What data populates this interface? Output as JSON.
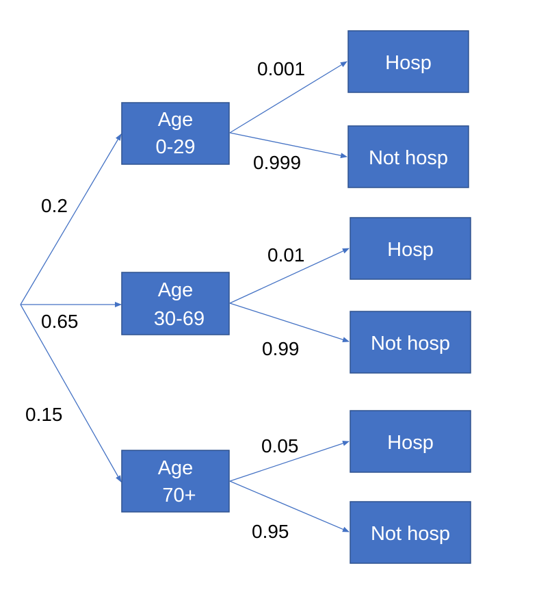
{
  "colors": {
    "node_fill": "#4472c4",
    "node_border": "#2f528f",
    "edge": "#4472c4",
    "label_text": "#000000",
    "node_text": "#ffffff"
  },
  "tree": {
    "groups": [
      {
        "label_line1": "Age",
        "label_line2": "0-29",
        "probability": "0.2",
        "outcomes": [
          {
            "label": "Hosp",
            "probability": "0.001"
          },
          {
            "label": "Not hosp",
            "probability": "0.999"
          }
        ]
      },
      {
        "label_line1": "Age",
        "label_line2": "30-69",
        "probability": "0.65",
        "outcomes": [
          {
            "label": "Hosp",
            "probability": "0.01"
          },
          {
            "label": "Not hosp",
            "probability": "0.99"
          }
        ]
      },
      {
        "label_line1": "Age",
        "label_line2": "70+",
        "probability": "0.15",
        "outcomes": [
          {
            "label": "Hosp",
            "probability": "0.05"
          },
          {
            "label": "Not hosp",
            "probability": "0.95"
          }
        ]
      }
    ]
  }
}
